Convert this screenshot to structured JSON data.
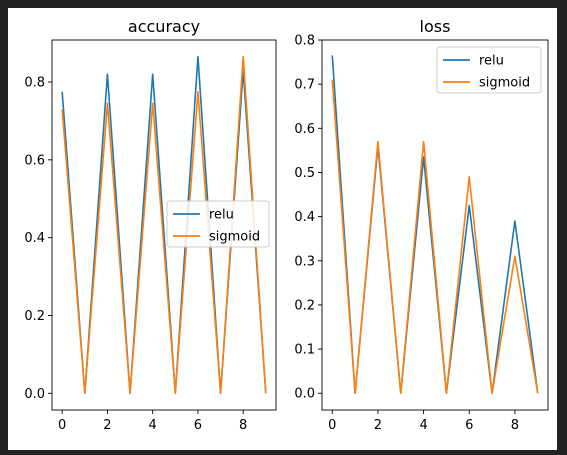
{
  "chart_data": [
    {
      "type": "line",
      "title": "accuracy",
      "xlabel": "",
      "ylabel": "",
      "x": [
        0,
        1,
        2,
        3,
        4,
        5,
        6,
        7,
        8,
        9
      ],
      "xlim": [
        -0.45,
        9.45
      ],
      "ylim": [
        -0.043,
        0.908
      ],
      "xticks": [
        0,
        2,
        4,
        6,
        8
      ],
      "yticks": [
        0.0,
        0.2,
        0.4,
        0.6,
        0.8
      ],
      "ytick_labels": [
        "0.0",
        "0.2",
        "0.4",
        "0.6",
        "0.8"
      ],
      "legend_position": "center-right",
      "grid": false,
      "series": [
        {
          "name": "relu",
          "color": "#1f77b4",
          "values": [
            0.775,
            0.0,
            0.82,
            0.0,
            0.82,
            0.0,
            0.865,
            0.0,
            0.83,
            0.0
          ]
        },
        {
          "name": "sigmoid",
          "color": "#ff7f0e",
          "values": [
            0.73,
            0.0,
            0.745,
            0.0,
            0.745,
            0.0,
            0.775,
            0.0,
            0.865,
            0.0
          ]
        }
      ]
    },
    {
      "type": "line",
      "title": "loss",
      "xlabel": "",
      "ylabel": "",
      "x": [
        0,
        1,
        2,
        3,
        4,
        5,
        6,
        7,
        8,
        9
      ],
      "xlim": [
        -0.45,
        9.45
      ],
      "ylim": [
        -0.038,
        0.8
      ],
      "xticks": [
        0,
        2,
        4,
        6,
        8
      ],
      "yticks": [
        0.0,
        0.1,
        0.2,
        0.3,
        0.4,
        0.5,
        0.6,
        0.7,
        0.8
      ],
      "ytick_labels": [
        "0.0",
        "0.1",
        "0.2",
        "0.3",
        "0.4",
        "0.5",
        "0.6",
        "0.7",
        "0.8"
      ],
      "legend_position": "top-right",
      "grid": false,
      "series": [
        {
          "name": "relu",
          "color": "#1f77b4",
          "values": [
            0.765,
            0.0,
            0.56,
            0.0,
            0.535,
            0.0,
            0.425,
            0.0,
            0.39,
            0.0
          ]
        },
        {
          "name": "sigmoid",
          "color": "#ff7f0e",
          "values": [
            0.71,
            0.0,
            0.57,
            0.0,
            0.57,
            0.0,
            0.49,
            0.0,
            0.31,
            0.0
          ]
        }
      ]
    }
  ]
}
